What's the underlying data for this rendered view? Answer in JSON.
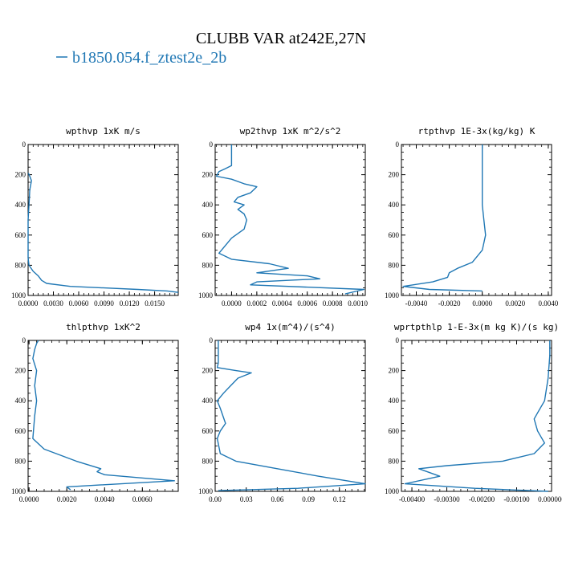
{
  "figure": {
    "title": "CLUBB VAR at242E,27N",
    "legend_label": "b1850.054.f_ztest2e_2b",
    "line_color": "#1f77b4"
  },
  "chart_data": [
    {
      "type": "line",
      "title": "wpthvp  1xK m/s",
      "xlim": [
        0,
        0.0178
      ],
      "ylim": [
        1000,
        0
      ],
      "xticks": [
        0,
        0.003,
        0.006,
        0.009,
        0.012,
        0.015
      ],
      "xtick_labels": [
        "0.0000",
        "0.0030",
        "0.0060",
        "0.0090",
        "0.0120",
        "0.0150"
      ],
      "yticks": [
        0,
        200,
        400,
        600,
        800,
        1000
      ],
      "ytick_labels": [
        "0",
        "200",
        "400",
        "600",
        "800",
        "1000"
      ],
      "series": [
        {
          "x": [
            5e-05,
            0.0001,
            0.0002,
            0.0004,
            0.0002,
            0.0001,
            0.0,
            0.0,
            0.0,
            0.0001,
            0.0006,
            0.0012,
            0.0016,
            0.0022,
            0.005,
            0.009,
            0.013,
            0.0165,
            0.0178
          ],
          "y": [
            190,
            200,
            210,
            240,
            300,
            400,
            500,
            600,
            750,
            800,
            840,
            870,
            900,
            920,
            940,
            950,
            960,
            970,
            980
          ]
        }
      ]
    },
    {
      "type": "line",
      "title": "wp2thvp  1xK m^2/s^2",
      "xlim": [
        -0.00013,
        0.00106
      ],
      "ylim": [
        1000,
        0
      ],
      "xticks": [
        0,
        0.0002,
        0.0004,
        0.0006,
        0.0008,
        0.001
      ],
      "xtick_labels": [
        "0.0000",
        "0.0002",
        "0.0004",
        "0.0006",
        "0.0008",
        "0.0010"
      ],
      "yticks": [
        0,
        200,
        400,
        600,
        800,
        1000
      ],
      "ytick_labels": [
        "0",
        "200",
        "400",
        "600",
        "800",
        "1000"
      ],
      "series": [
        {
          "x": [
            0.0,
            0.0,
            0.0,
            -5e-05,
            -0.0001,
            -0.00012,
            0.0,
            0.0001,
            0.0002,
            0.00015,
            5e-05,
            2e-05,
            0.0001,
            5e-05,
            0.0001,
            0.00012,
            0.0001,
            0.0,
            -0.0001,
            0.0,
            0.0003,
            0.00045,
            0.0002,
            0.0006,
            0.0007,
            0.0002,
            0.00015,
            0.00105,
            0.0009
          ],
          "y": [
            0,
            100,
            140,
            160,
            180,
            210,
            230,
            260,
            280,
            320,
            350,
            380,
            400,
            430,
            460,
            500,
            560,
            620,
            720,
            760,
            790,
            820,
            850,
            870,
            890,
            910,
            930,
            960,
            990
          ]
        }
      ]
    },
    {
      "type": "line",
      "title": "rtpthvp  1E-3x(kg/kg) K",
      "xlim": [
        -0.0049,
        0.0042
      ],
      "ylim": [
        1000,
        0
      ],
      "xticks": [
        -0.004,
        -0.002,
        0,
        0.002,
        0.004
      ],
      "xtick_labels": [
        "-0.0040",
        "-0.0020",
        "0.0000",
        "0.0020",
        "0.0040"
      ],
      "yticks": [
        0,
        200,
        400,
        600,
        800,
        1000
      ],
      "ytick_labels": [
        "0",
        "200",
        "400",
        "600",
        "800",
        "1000"
      ],
      "series": [
        {
          "x": [
            0.0,
            0.0,
            0.0,
            0.0001,
            0.0002,
            0.0,
            -0.0006,
            -0.0015,
            -0.002,
            -0.0021,
            -0.003,
            -0.0048,
            -0.0032,
            0.0
          ],
          "y": [
            0,
            200,
            400,
            500,
            600,
            700,
            780,
            820,
            850,
            880,
            910,
            940,
            960,
            970
          ]
        }
      ]
    },
    {
      "type": "line",
      "title": "thlpthvp  1xK^2",
      "xlim": [
        -5e-05,
        0.0079
      ],
      "ylim": [
        1000,
        0
      ],
      "xticks": [
        0,
        0.002,
        0.004,
        0.006
      ],
      "xtick_labels": [
        "0.0000",
        "0.0020",
        "0.0040",
        "0.0060"
      ],
      "yticks": [
        0,
        200,
        400,
        600,
        800,
        1000
      ],
      "ytick_labels": [
        "0",
        "200",
        "400",
        "600",
        "800",
        "1000"
      ],
      "series": [
        {
          "x": [
            0.0005,
            0.0004,
            0.0003,
            0.0002,
            0.0004,
            0.0003,
            0.0004,
            0.0003,
            0.0002,
            0.0008,
            0.0025,
            0.0038,
            0.0036,
            0.004,
            0.0077,
            0.002,
            0.0022
          ],
          "y": [
            0,
            20,
            60,
            120,
            200,
            300,
            400,
            500,
            650,
            720,
            800,
            850,
            870,
            890,
            930,
            970,
            990
          ]
        }
      ]
    },
    {
      "type": "line",
      "title": "wp4  1x(m^4)/(s^4)",
      "xlim": [
        0,
        0.145
      ],
      "ylim": [
        1000,
        0
      ],
      "xticks": [
        0,
        0.03,
        0.06,
        0.09,
        0.12
      ],
      "xtick_labels": [
        "0.00",
        "0.03",
        "0.06",
        "0.09",
        "0.12"
      ],
      "yticks": [
        0,
        200,
        400,
        600,
        800,
        1000
      ],
      "ytick_labels": [
        "0",
        "200",
        "400",
        "600",
        "800",
        "1000"
      ],
      "series": [
        {
          "x": [
            0.003,
            0.003,
            0.003,
            0.002,
            0.02,
            0.035,
            0.022,
            0.015,
            0.008,
            0.002,
            0.005,
            0.01,
            0.005,
            0.002,
            0.005,
            0.02,
            0.06,
            0.1,
            0.145,
            0.08,
            0.003
          ],
          "y": [
            0,
            100,
            150,
            180,
            200,
            215,
            250,
            300,
            350,
            400,
            450,
            550,
            600,
            650,
            750,
            800,
            850,
            900,
            950,
            980,
            995
          ]
        }
      ]
    },
    {
      "type": "line",
      "title": "wprtpthlp  1-E-3x(m kg K)/(s kg)",
      "xlim": [
        -0.0043,
        0.0
      ],
      "ylim": [
        1000,
        0
      ],
      "xticks": [
        -0.004,
        -0.003,
        -0.002,
        -0.001,
        0
      ],
      "xtick_labels": [
        "-0.00400",
        "-0.00300",
        "-0.00200",
        "-0.00100",
        "0.000000"
      ],
      "yticks": [
        0,
        200,
        400,
        600,
        800,
        1000
      ],
      "ytick_labels": [
        "0",
        "200",
        "400",
        "600",
        "800",
        "1000"
      ],
      "series": [
        {
          "x": [
            -5e-05,
            -5e-05,
            -0.0001,
            -0.0002,
            -0.0004,
            -0.0005,
            -0.0004,
            -0.0002,
            -0.0005,
            -0.0014,
            -0.003,
            -0.0038,
            -0.0032,
            -0.0042,
            -0.0022,
            -0.0001
          ],
          "y": [
            0,
            100,
            250,
            400,
            480,
            520,
            600,
            680,
            750,
            800,
            830,
            850,
            900,
            950,
            980,
            1000
          ]
        }
      ]
    }
  ]
}
